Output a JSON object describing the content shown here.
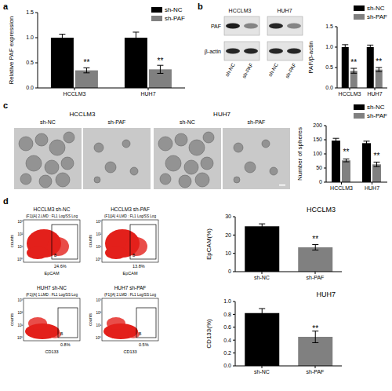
{
  "panel_letters": [
    "a",
    "b",
    "c",
    "d"
  ],
  "chart_data": [
    {
      "type": "bar",
      "y_label": "Relative PAF expression",
      "categories": [
        "HCCLM3",
        "HUH7"
      ],
      "series": [
        {
          "name": "sh-NC",
          "color": "#000000",
          "values": [
            1.0,
            1.0
          ],
          "errors": [
            0.07,
            0.11
          ],
          "annotations": [
            null,
            null
          ]
        },
        {
          "name": "sh-PAF",
          "color": "#808080",
          "values": [
            0.35,
            0.37
          ],
          "errors": [
            0.05,
            0.08
          ],
          "annotations": [
            "**",
            "**"
          ]
        }
      ],
      "ylim": [
        0,
        1.5
      ],
      "yticks": [
        {
          "value": 0,
          "label": "0.0"
        },
        0.5,
        {
          "value": 1,
          "label": "1.0"
        },
        1.5
      ],
      "legend": "top right"
    },
    {
      "type": "bar",
      "y_label": "PAF/β-actin",
      "categories": [
        "HCCLM3",
        "HUH7"
      ],
      "series": [
        {
          "name": "sh-NC",
          "color": "#000000",
          "values": [
            1.0,
            1.0
          ],
          "errors": [
            0.06,
            0.05
          ],
          "annotations": [
            null,
            null
          ]
        },
        {
          "name": "sh-PAF",
          "color": "#808080",
          "values": [
            0.42,
            0.45
          ],
          "errors": [
            0.06,
            0.05
          ],
          "annotations": [
            "**",
            "**"
          ]
        }
      ],
      "ylim": [
        0,
        1.5
      ],
      "yticks": [
        {
          "value": 0,
          "label": "0.0"
        },
        0.5,
        {
          "value": 1,
          "label": "1.0"
        },
        1.5
      ],
      "legend": "top right"
    },
    {
      "type": "bar",
      "y_label": "Number of spheres",
      "categories": [
        "HCCLM3",
        "HUH7"
      ],
      "series": [
        {
          "name": "sh-NC",
          "color": "#000000",
          "values": [
            147,
            138
          ],
          "errors": [
            8,
            7
          ],
          "annotations": [
            null,
            null
          ]
        },
        {
          "name": "sh-PAF",
          "color": "#808080",
          "values": [
            77,
            63
          ],
          "errors": [
            5,
            8
          ],
          "annotations": [
            "**",
            "**"
          ]
        }
      ],
      "ylim": [
        0,
        200
      ],
      "yticks": [
        0,
        50,
        100,
        150,
        200
      ],
      "legend": "top right"
    },
    {
      "type": "bar",
      "title": "HCCLM3",
      "y_label": "EpCAM(%)",
      "categories": [
        "sh-NC",
        "sh-PAF"
      ],
      "values": [
        24.8,
        13.3
      ],
      "errors": [
        1.3,
        1.5
      ],
      "annotations": [
        null,
        "**"
      ],
      "colors": [
        "#000000",
        "#808080"
      ],
      "ylim": [
        0,
        30
      ],
      "yticks": [
        0,
        10,
        20,
        30
      ]
    },
    {
      "type": "bar",
      "title": "HUH7",
      "y_label": "CD133(%)",
      "categories": [
        "sh-NC",
        "sh-PAF"
      ],
      "values": [
        0.82,
        0.45
      ],
      "errors": [
        0.07,
        0.09
      ],
      "annotations": [
        null,
        "**"
      ],
      "colors": [
        "#000000",
        "#808080"
      ],
      "ylim": [
        0,
        1.0
      ],
      "yticks": [
        {
          "value": 0,
          "label": "0.0"
        },
        0.2,
        0.4,
        0.6,
        0.8,
        {
          "value": 1,
          "label": "1.0"
        }
      ]
    }
  ],
  "blot": {
    "cell_lines": [
      "HCCLM3",
      "HUH7"
    ],
    "rows": [
      "PAF",
      "β-actin"
    ],
    "lanes": [
      "sh-NC",
      "sh-PAF",
      "sh-NC",
      "sh-PAF"
    ]
  },
  "spheres": {
    "groups": [
      {
        "cell_line": "HCCLM3",
        "conditions": [
          "sh-NC",
          "sh-PAF"
        ]
      },
      {
        "cell_line": "HUH7",
        "conditions": [
          "sh-NC",
          "sh-PAF"
        ]
      }
    ]
  },
  "flow": {
    "plots": [
      {
        "title": "HCCLM3 sh-NC",
        "header": "(F1)[A] 2.LMD : FL1 Log/SS Log",
        "gate": "B",
        "percent": "24.6%",
        "x_label": "EpCAM",
        "y_label": "counts"
      },
      {
        "title": "HCCLM3 sh-PAF",
        "header": "(F1)[A] 4.LMD : FL1 Log/SS Log",
        "gate": "B",
        "percent": "13.8%",
        "x_label": "EpCAM",
        "y_label": "counts"
      },
      {
        "title": "HUH7 sh-NC",
        "header": "(F1)[A] 1.LMD : FL1 Log/SS Log",
        "gate": "B",
        "percent": "0.8%",
        "x_label": "CD133",
        "y_label": "counts"
      },
      {
        "title": "HUH7 sh-PAF",
        "header": "(F1)[A] 2.LMD : FL1 Log/SS Log",
        "gate": "B",
        "percent": "0.5%",
        "x_label": "CD133",
        "y_label": "counts"
      }
    ],
    "y_ticks": [
      "10³",
      "10²",
      "10¹",
      "10⁰"
    ]
  }
}
